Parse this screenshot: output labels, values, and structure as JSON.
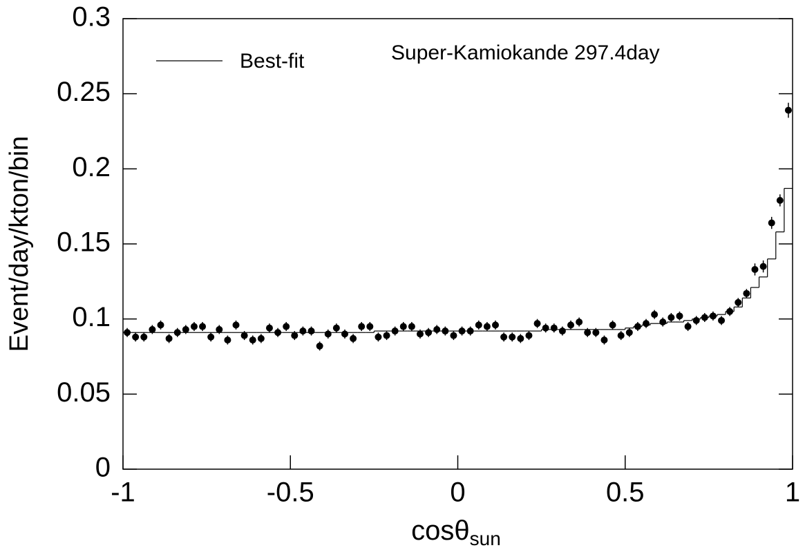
{
  "chart_data": {
    "type": "scatter",
    "annotation": "Super-Kamiokande 297.4day",
    "xlabel": {
      "text": "cosθ",
      "subscript": "sun"
    },
    "ylabel": "Event/day/kton/bin",
    "xlim": [
      -1,
      1
    ],
    "ylim": [
      0,
      0.3
    ],
    "xticks": [
      -1,
      -0.5,
      0,
      0.5,
      1
    ],
    "yticks": [
      0,
      0.05,
      0.1,
      0.15,
      0.2,
      0.25,
      0.3
    ],
    "x": [
      -0.9875,
      -0.9625,
      -0.9375,
      -0.9125,
      -0.8875,
      -0.8625,
      -0.8375,
      -0.8125,
      -0.7875,
      -0.7625,
      -0.7375,
      -0.7125,
      -0.6875,
      -0.6625,
      -0.6375,
      -0.6125,
      -0.5875,
      -0.5625,
      -0.5375,
      -0.5125,
      -0.4875,
      -0.4625,
      -0.4375,
      -0.4125,
      -0.3875,
      -0.3625,
      -0.3375,
      -0.3125,
      -0.2875,
      -0.2625,
      -0.2375,
      -0.2125,
      -0.1875,
      -0.1625,
      -0.1375,
      -0.1125,
      -0.0875,
      -0.0625,
      -0.0375,
      -0.0125,
      0.0125,
      0.0375,
      0.0625,
      0.0875,
      0.1125,
      0.1375,
      0.1625,
      0.1875,
      0.2125,
      0.2375,
      0.2625,
      0.2875,
      0.3125,
      0.3375,
      0.3625,
      0.3875,
      0.4125,
      0.4375,
      0.4625,
      0.4875,
      0.5125,
      0.5375,
      0.5625,
      0.5875,
      0.6125,
      0.6375,
      0.6625,
      0.6875,
      0.7125,
      0.7375,
      0.7625,
      0.7875,
      0.8125,
      0.8375,
      0.8625,
      0.8875,
      0.9125,
      0.9375,
      0.9625,
      0.9875
    ],
    "series": [
      {
        "color": "#000000",
        "values": [
          0.091,
          0.088,
          0.088,
          0.093,
          0.096,
          0.087,
          0.091,
          0.093,
          0.095,
          0.095,
          0.088,
          0.093,
          0.086,
          0.096,
          0.089,
          0.086,
          0.087,
          0.094,
          0.091,
          0.095,
          0.089,
          0.092,
          0.092,
          0.082,
          0.09,
          0.094,
          0.09,
          0.087,
          0.095,
          0.095,
          0.088,
          0.089,
          0.092,
          0.095,
          0.095,
          0.09,
          0.091,
          0.093,
          0.092,
          0.089,
          0.092,
          0.092,
          0.096,
          0.095,
          0.096,
          0.088,
          0.088,
          0.087,
          0.089,
          0.097,
          0.094,
          0.094,
          0.092,
          0.096,
          0.098,
          0.091,
          0.091,
          0.086,
          0.096,
          0.089,
          0.091,
          0.095,
          0.097,
          0.103,
          0.098,
          0.101,
          0.102,
          0.095,
          0.099,
          0.101,
          0.102,
          0.099,
          0.105,
          0.111,
          0.117,
          0.133,
          0.135,
          0.164,
          0.179,
          0.239
        ],
        "errors": [
          0.003,
          0.003,
          0.003,
          0.003,
          0.003,
          0.003,
          0.003,
          0.003,
          0.003,
          0.003,
          0.003,
          0.003,
          0.003,
          0.003,
          0.003,
          0.003,
          0.003,
          0.003,
          0.003,
          0.003,
          0.003,
          0.003,
          0.003,
          0.003,
          0.003,
          0.003,
          0.003,
          0.003,
          0.003,
          0.003,
          0.003,
          0.003,
          0.003,
          0.003,
          0.003,
          0.003,
          0.003,
          0.003,
          0.003,
          0.003,
          0.003,
          0.003,
          0.003,
          0.003,
          0.003,
          0.003,
          0.003,
          0.003,
          0.003,
          0.003,
          0.003,
          0.003,
          0.003,
          0.003,
          0.003,
          0.003,
          0.003,
          0.003,
          0.003,
          0.003,
          0.003,
          0.003,
          0.003,
          0.003,
          0.003,
          0.003,
          0.003,
          0.003,
          0.003,
          0.003,
          0.003,
          0.003,
          0.003,
          0.003,
          0.003,
          0.004,
          0.004,
          0.004,
          0.004,
          0.005
        ]
      },
      {
        "name": "Best-fit",
        "color": "#000000",
        "step": true,
        "values": [
          0.091,
          0.091,
          0.091,
          0.091,
          0.091,
          0.091,
          0.091,
          0.091,
          0.091,
          0.091,
          0.091,
          0.091,
          0.091,
          0.091,
          0.091,
          0.091,
          0.091,
          0.091,
          0.091,
          0.091,
          0.091,
          0.091,
          0.091,
          0.091,
          0.091,
          0.091,
          0.091,
          0.091,
          0.091,
          0.091,
          0.092,
          0.092,
          0.092,
          0.092,
          0.092,
          0.092,
          0.092,
          0.092,
          0.092,
          0.092,
          0.092,
          0.092,
          0.092,
          0.092,
          0.092,
          0.092,
          0.092,
          0.092,
          0.092,
          0.092,
          0.093,
          0.093,
          0.093,
          0.093,
          0.093,
          0.093,
          0.093,
          0.093,
          0.093,
          0.093,
          0.094,
          0.095,
          0.096,
          0.097,
          0.097,
          0.098,
          0.098,
          0.099,
          0.1,
          0.101,
          0.102,
          0.103,
          0.105,
          0.108,
          0.114,
          0.121,
          0.128,
          0.14,
          0.158,
          0.187
        ]
      }
    ]
  }
}
